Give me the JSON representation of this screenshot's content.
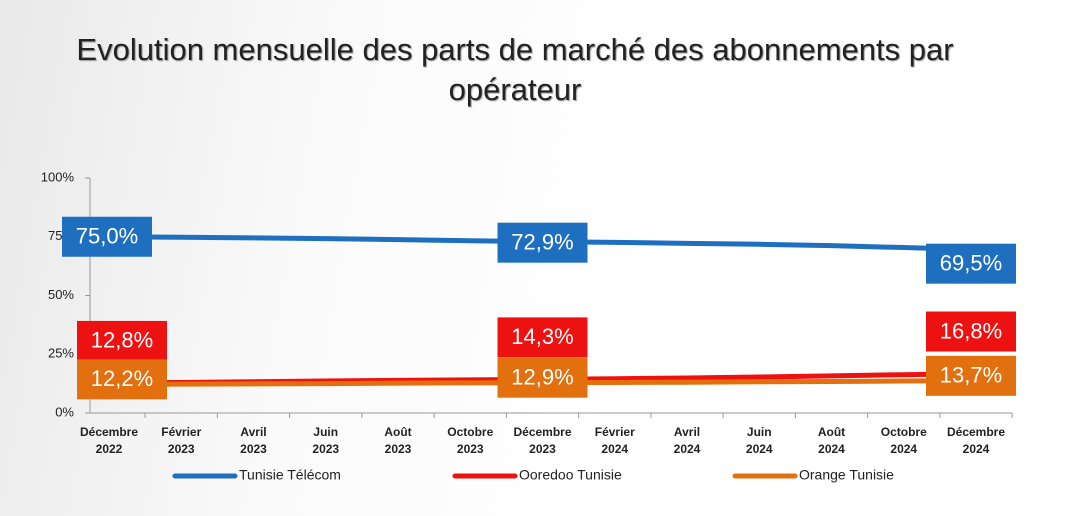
{
  "chart_data": {
    "type": "line",
    "title": "Evolution mensuelle des parts de marché des abonnements par opérateur",
    "categories": [
      [
        "Décembre",
        "2022"
      ],
      [
        "Février",
        "2023"
      ],
      [
        "Avril",
        "2023"
      ],
      [
        "Juin",
        "2023"
      ],
      [
        "Août",
        "2023"
      ],
      [
        "Octobre",
        "2023"
      ],
      [
        "Décembre",
        "2023"
      ],
      [
        "Février",
        "2024"
      ],
      [
        "Avril",
        "2024"
      ],
      [
        "Juin",
        "2024"
      ],
      [
        "Août",
        "2024"
      ],
      [
        "Octobre",
        "2024"
      ],
      [
        "Décembre",
        "2024"
      ]
    ],
    "series": [
      {
        "name": "Tunisie Télécom",
        "color": "#1f6fc0",
        "values": [
          75.0,
          74.8,
          74.5,
          74.2,
          73.8,
          73.3,
          72.9,
          72.6,
          72.2,
          71.8,
          71.2,
          70.4,
          69.5
        ],
        "value_labels": [
          "75,0%",
          null,
          null,
          null,
          null,
          null,
          "72,9%",
          null,
          null,
          null,
          null,
          null,
          "69,5%"
        ]
      },
      {
        "name": "Ooredoo Tunisie",
        "color": "#ee1111",
        "values": [
          12.8,
          13.0,
          13.3,
          13.6,
          13.9,
          14.1,
          14.3,
          14.6,
          14.9,
          15.3,
          15.8,
          16.3,
          16.8
        ],
        "value_labels": [
          "12,8%",
          null,
          null,
          null,
          null,
          null,
          "14,3%",
          null,
          null,
          null,
          null,
          null,
          "16,8%"
        ]
      },
      {
        "name": "Orange Tunisie",
        "color": "#e2700e",
        "values": [
          12.2,
          12.3,
          12.4,
          12.5,
          12.7,
          12.8,
          12.9,
          13.0,
          13.1,
          13.3,
          13.4,
          13.6,
          13.7
        ],
        "value_labels": [
          "12,2%",
          null,
          null,
          null,
          null,
          null,
          "12,9%",
          null,
          null,
          null,
          null,
          null,
          "13,7%"
        ]
      }
    ],
    "ylim": [
      0,
      100
    ],
    "yticks": [
      {
        "value": 0,
        "label": "0%"
      },
      {
        "value": 25,
        "label": "25%"
      },
      {
        "value": 50,
        "label": "50%"
      },
      {
        "value": 75,
        "label": "75%"
      },
      {
        "value": 100,
        "label": "100%"
      }
    ],
    "grid": false,
    "legend": "bottom"
  }
}
